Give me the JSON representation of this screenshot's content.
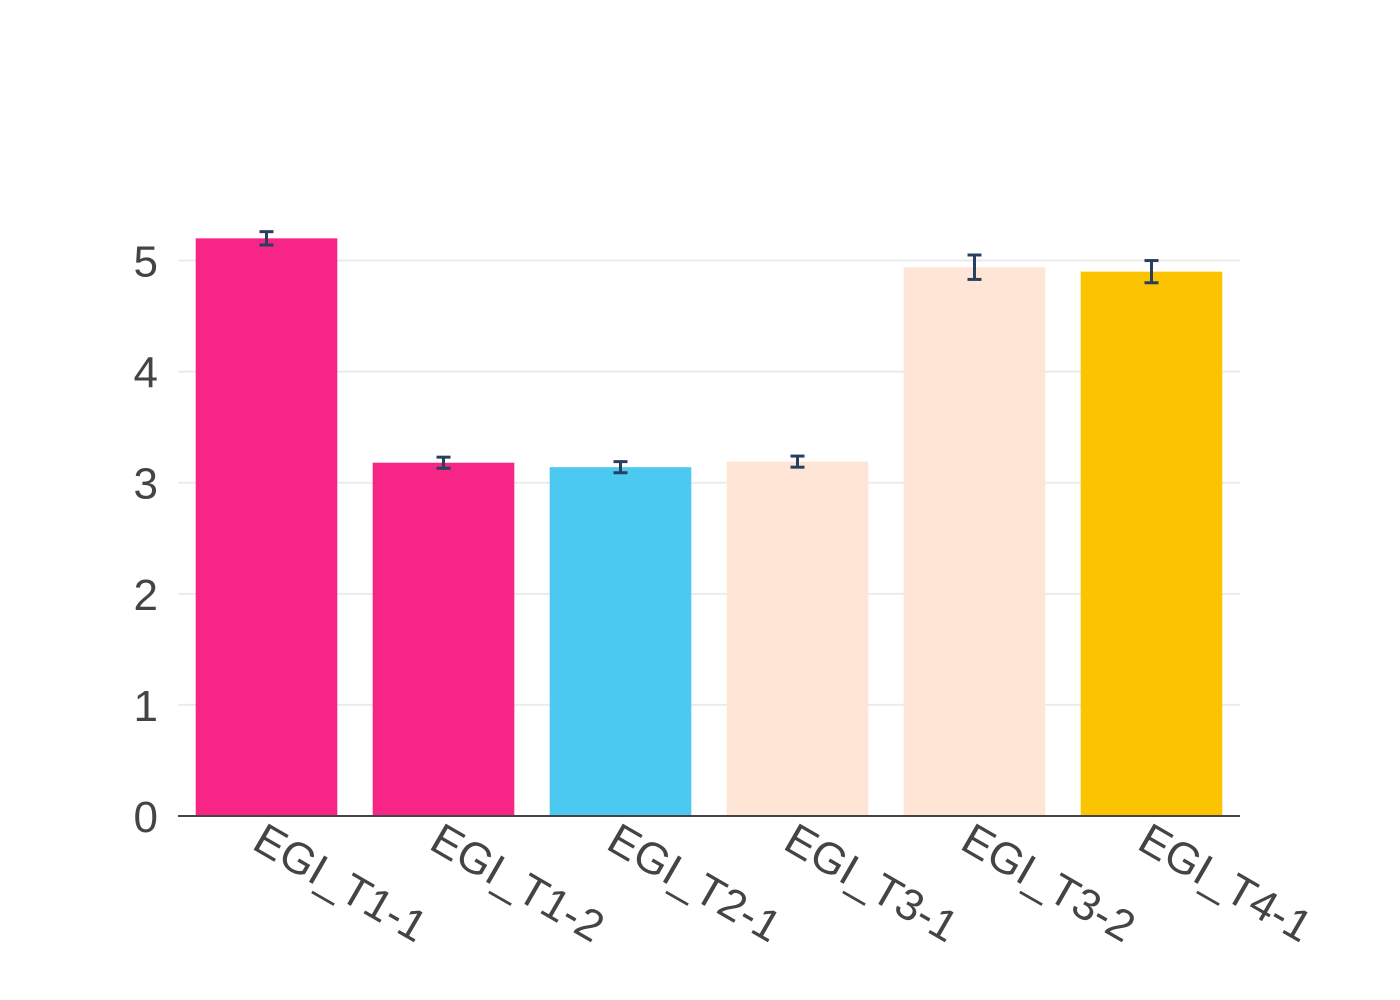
{
  "chart_data": {
    "type": "bar",
    "title": "",
    "xlabel": "",
    "ylabel": "",
    "categories": [
      "EGI_T1-1",
      "EGI_T1-2",
      "EGI_T2-1",
      "EGI_T3-1",
      "EGI_T3-2",
      "EGI_T4-1"
    ],
    "values": [
      5.2,
      3.18,
      3.14,
      3.19,
      4.94,
      4.9
    ],
    "errors": [
      0.06,
      0.05,
      0.05,
      0.05,
      0.11,
      0.1
    ],
    "colors": [
      "#f72585",
      "#f72585",
      "#4cc9f0",
      "#ffe5d6",
      "#ffe5d6",
      "#fcc400"
    ],
    "ylim": [
      0,
      5.5
    ],
    "yticks": [
      0,
      1,
      2,
      3,
      4,
      5
    ],
    "grid": true,
    "error_bar_color": "#2a3f5f",
    "legend": false
  }
}
